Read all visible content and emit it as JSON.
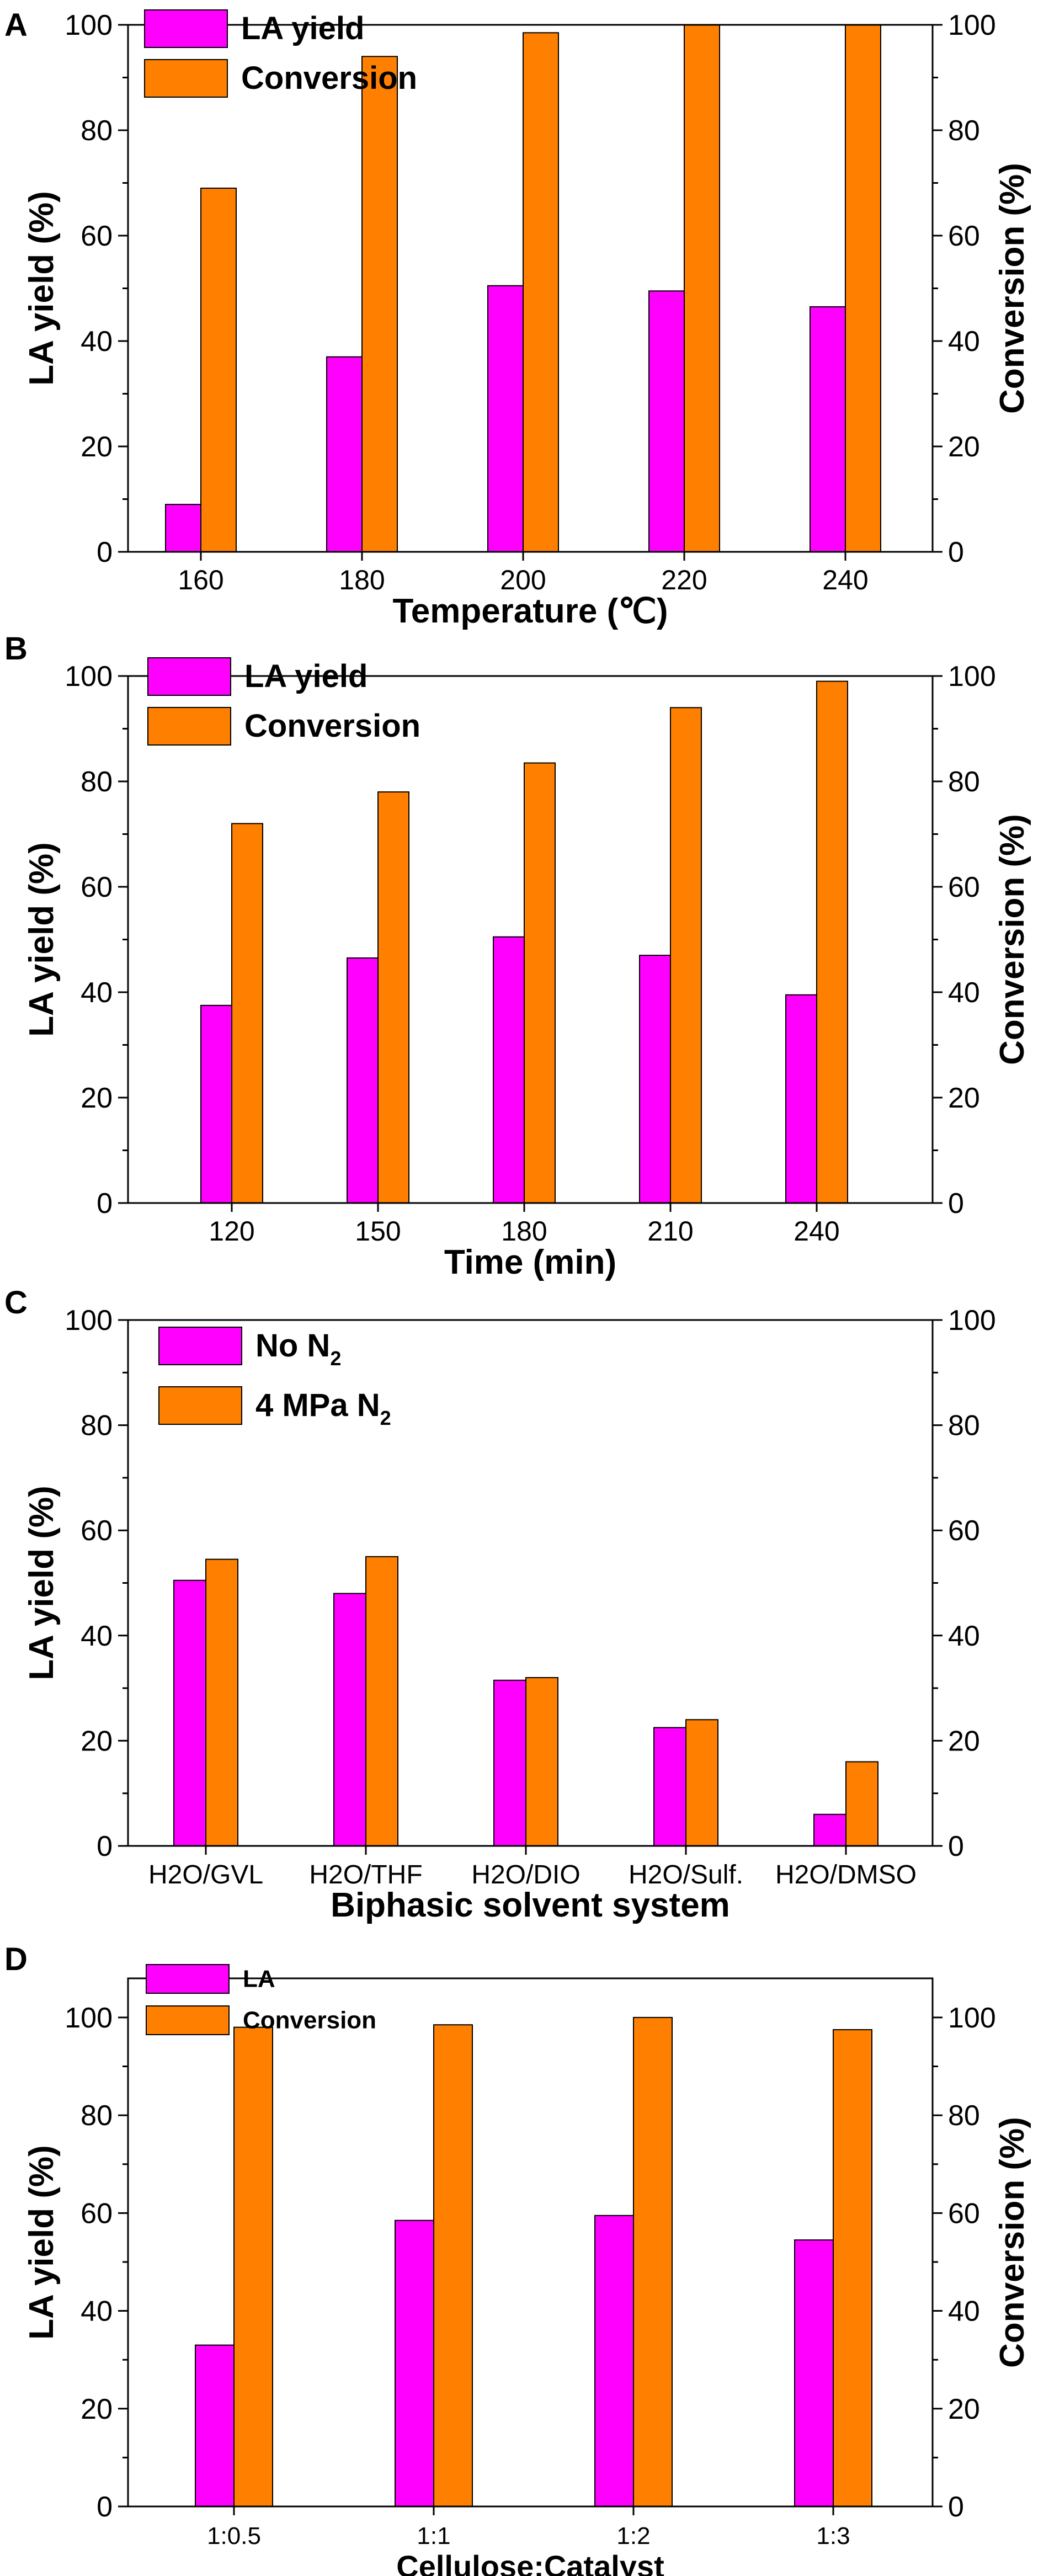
{
  "colors": {
    "la": "#ff00ff",
    "conv": "#ff8000",
    "axis": "#000000",
    "bar_edge": "#000000"
  },
  "chart_data": [
    {
      "panel": "A",
      "type": "bar",
      "xlabel": "Temperature (℃)",
      "ylabel_left": "LA yield (%)",
      "ylabel_right": "Conversion (%)",
      "ylim": [
        0,
        100
      ],
      "yticks": [
        "0",
        "20",
        "40",
        "60",
        "80",
        "100"
      ],
      "right_ticks": [
        "0",
        "20",
        "40",
        "60",
        "80",
        "100"
      ],
      "categories": [
        "160",
        "180",
        "200",
        "220",
        "240"
      ],
      "series": [
        {
          "name": "LA yield",
          "color": "#ff00ff",
          "values": [
            9,
            37,
            50.5,
            49.5,
            46.5
          ]
        },
        {
          "name": "Conversion",
          "color": "#ff8000",
          "values": [
            69,
            94,
            98.5,
            100,
            100
          ]
        }
      ]
    },
    {
      "panel": "B",
      "type": "bar",
      "xlabel": "Time (min)",
      "ylabel_left": "LA yield (%)",
      "ylabel_right": "Conversion (%)",
      "ylim": [
        0,
        100
      ],
      "yticks": [
        "0",
        "20",
        "40",
        "60",
        "80",
        "100"
      ],
      "right_ticks": [
        "0",
        "20",
        "40",
        "60",
        "80",
        "100"
      ],
      "categories": [
        "120",
        "150",
        "180",
        "210",
        "240"
      ],
      "series": [
        {
          "name": "LA yield",
          "color": "#ff00ff",
          "values": [
            37.5,
            46.5,
            50.5,
            47,
            39.5
          ]
        },
        {
          "name": "Conversion",
          "color": "#ff8000",
          "values": [
            72,
            78,
            83.5,
            94,
            99
          ]
        }
      ]
    },
    {
      "panel": "C",
      "type": "bar",
      "xlabel": "Biphasic solvent system",
      "ylabel_left": "LA yield (%)",
      "ylabel_right": "",
      "ylim": [
        0,
        100
      ],
      "yticks": [
        "0",
        "20",
        "40",
        "60",
        "80",
        "100"
      ],
      "right_ticks": [
        "0",
        "20",
        "40",
        "60",
        "80",
        "100"
      ],
      "categories": [
        "H2O/GVL",
        "H2O/THF",
        "H2O/DIO",
        "H2O/Sulf.",
        "H2O/DMSO"
      ],
      "series": [
        {
          "name": "No N",
          "sub": "2",
          "color": "#ff00ff",
          "values": [
            50.5,
            48,
            31.5,
            22.5,
            6
          ]
        },
        {
          "name": "4 MPa N",
          "sub": "2",
          "color": "#ff8000",
          "values": [
            54.5,
            55,
            32,
            24,
            16
          ]
        }
      ]
    },
    {
      "panel": "D",
      "type": "bar",
      "xlabel": "Cellulose:Catalyst",
      "ylabel_left": "LA yield (%)",
      "ylabel_right": "Conversion (%)",
      "ylim": [
        0,
        108
      ],
      "yticks": [
        "0",
        "20",
        "40",
        "60",
        "80",
        "100"
      ],
      "right_ticks": [
        "0",
        "20",
        "40",
        "60",
        "80",
        "100"
      ],
      "categories": [
        "1:0.5",
        "1:1",
        "1:2",
        "1:3"
      ],
      "series": [
        {
          "name": "LA",
          "color": "#ff00ff",
          "values": [
            33,
            58.5,
            59.5,
            54.5
          ]
        },
        {
          "name": "Conversion",
          "color": "#ff8000",
          "values": [
            98,
            98.5,
            100,
            97.5
          ]
        }
      ]
    }
  ]
}
